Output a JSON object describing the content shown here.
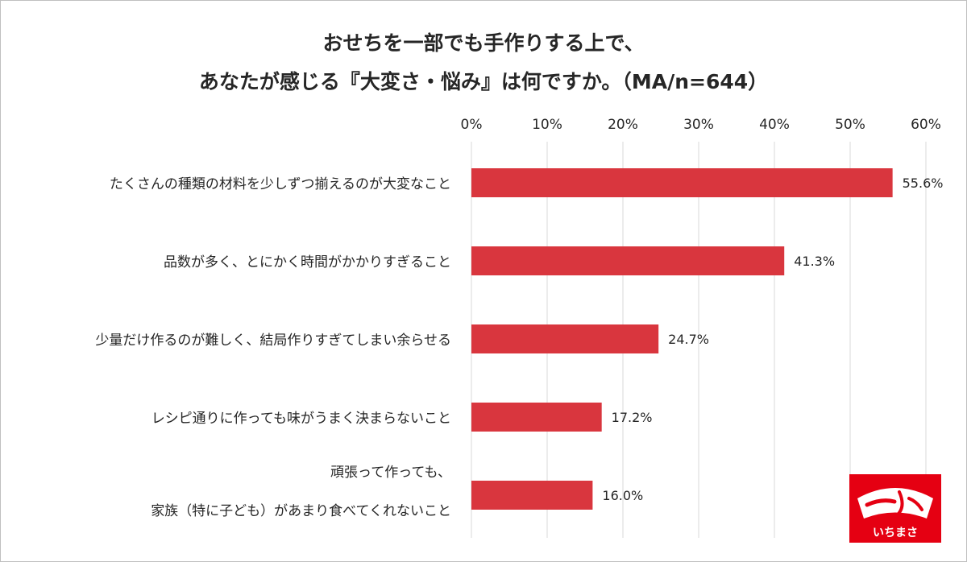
{
  "title_lines": [
    "おせちを一部でも手作りする上で、",
    "あなたが感じる『大変さ・悩み』は何ですか。（MA/n=644）"
  ],
  "logo_text": "いちまさ",
  "colors": {
    "bar": "#d9363e",
    "grid": "#d9d9d9",
    "text": "#262626",
    "logo_bg": "#e50012"
  },
  "chart_data": {
    "type": "bar",
    "orientation": "horizontal",
    "categories": [
      [
        "たくさんの種類の材料を少しずつ揃えるのが大変なこと"
      ],
      [
        "品数が多く、とにかく時間がかかりすぎること"
      ],
      [
        "少量だけ作るのが難しく、結局作りすぎてしまい余らせる"
      ],
      [
        "レシピ通りに作っても味がうまく決まらないこと"
      ],
      [
        "頑張って作っても、",
        "家族（特に子ども）があまり食べてくれないこと"
      ]
    ],
    "values": [
      55.6,
      41.3,
      24.7,
      17.2,
      16.0
    ],
    "value_labels": [
      "55.6%",
      "41.3%",
      "24.7%",
      "17.2%",
      "16.0%"
    ],
    "xlim": [
      0,
      60
    ],
    "x_ticks": [
      0,
      10,
      20,
      30,
      40,
      50,
      60
    ],
    "x_tick_labels": [
      "0%",
      "10%",
      "20%",
      "30%",
      "40%",
      "50%",
      "60%"
    ],
    "x_axis_position": "top",
    "grid": true
  }
}
